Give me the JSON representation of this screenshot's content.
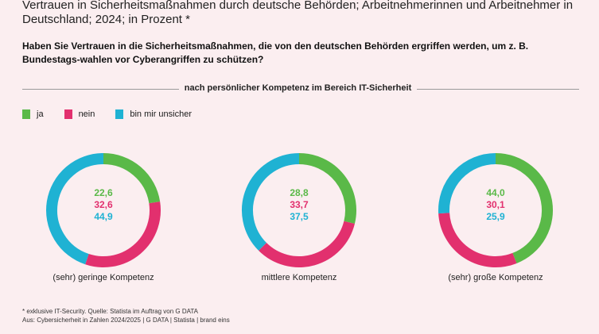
{
  "title": "Vertrauen in Sicherheitsmaßnahmen durch deutsche Behörden; Arbeitnehmerinnen und Arbeitnehmer in Deutschland; 2024; in Prozent *",
  "question": "Haben Sie Vertrauen in die Sicherheitsmaßnahmen, die von den deutschen Behörden ergriffen werden, um z. B. Bundestags-wahlen vor Cyberangriffen zu schützen?",
  "subtitle": "nach persönlicher Kompetenz im Bereich IT-Sicherheit",
  "footnote_1": "* exklusive IT-Security. Quelle: Statista im Auftrag von G DATA",
  "footnote_2": "Aus: Cybersicherheit in Zahlen 2024/2025 | G DATA | Statista | brand eins",
  "colors": {
    "ja": "#5ab948",
    "nein": "#e2306e",
    "unsicher": "#1fb2d3"
  },
  "chart_data": {
    "type": "pie",
    "variant": "donut",
    "legend": [
      "ja",
      "nein",
      "bin mir unsicher"
    ],
    "legend_placement": "top-left",
    "categories": [
      "(sehr) geringe Kompetenz",
      "mittlere Kompetenz",
      "(sehr) große Kompetenz"
    ],
    "series": [
      {
        "name": "ja",
        "values": [
          "22,6",
          "28,8",
          "44,0"
        ]
      },
      {
        "name": "nein",
        "values": [
          "32,6",
          "33,7",
          "30,1"
        ]
      },
      {
        "name": "bin mir unsicher",
        "values": [
          "44,9",
          "37,5",
          "25,9"
        ]
      }
    ]
  }
}
